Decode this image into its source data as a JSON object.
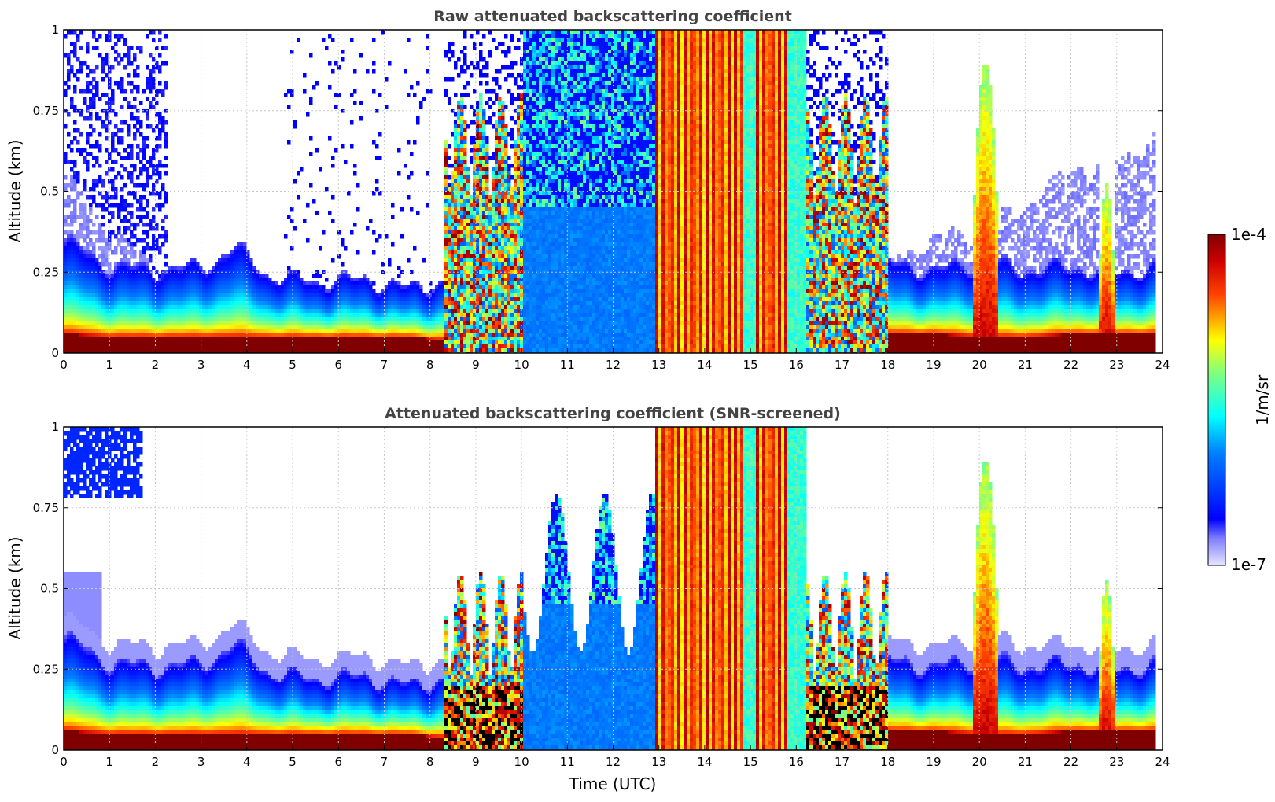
{
  "chart_data": [
    {
      "type": "heatmap",
      "title": "Raw attenuated backscattering coefficient",
      "xlabel": "",
      "ylabel": "Altitude (km)",
      "xlim": [
        0,
        24
      ],
      "ylim": [
        0,
        1
      ],
      "x_ticks": [
        "0",
        "1",
        "2",
        "3",
        "4",
        "5",
        "6",
        "7",
        "8",
        "9",
        "10",
        "11",
        "12",
        "13",
        "14",
        "15",
        "16",
        "17",
        "18",
        "19",
        "20",
        "21",
        "22",
        "23",
        "24"
      ],
      "y_ticks": [
        "0",
        "0.25",
        "0.5",
        "0.75",
        "1"
      ],
      "y_tick_values": [
        0,
        0.25,
        0.5,
        0.75,
        1
      ],
      "grid": true,
      "data_end_hour": 23.8,
      "profile": [
        {
          "t": 0.0,
          "top": 0.35,
          "fog": 0.2,
          "base": 0.06
        },
        {
          "t": 1.0,
          "top": 0.27,
          "fog": 0.1,
          "base": 0.05
        },
        {
          "t": 2.0,
          "top": 0.26,
          "fog": 0.0,
          "base": 0.05
        },
        {
          "t": 3.0,
          "top": 0.27,
          "fog": 0.0,
          "base": 0.05
        },
        {
          "t": 3.7,
          "top": 0.33,
          "fog": 0.0,
          "base": 0.05
        },
        {
          "t": 4.5,
          "top": 0.24,
          "fog": 0.0,
          "base": 0.05
        },
        {
          "t": 5.5,
          "top": 0.22,
          "fog": 0.0,
          "base": 0.05
        },
        {
          "t": 6.5,
          "top": 0.23,
          "fog": 0.0,
          "base": 0.05
        },
        {
          "t": 7.5,
          "top": 0.2,
          "fog": 0.0,
          "base": 0.05
        },
        {
          "t": 8.2,
          "top": 0.22,
          "fog": 0.0,
          "base": 0.04
        },
        {
          "t": 18.0,
          "top": 0.28,
          "fog": 0.0,
          "base": 0.06
        },
        {
          "t": 19.0,
          "top": 0.26,
          "fog": 0.1,
          "base": 0.06
        },
        {
          "t": 20.0,
          "top": 0.28,
          "fog": 0.1,
          "base": 0.05
        },
        {
          "t": 21.0,
          "top": 0.26,
          "fog": 0.2,
          "base": 0.05
        },
        {
          "t": 22.0,
          "top": 0.27,
          "fog": 0.3,
          "base": 0.06
        },
        {
          "t": 23.0,
          "top": 0.25,
          "fog": 0.35,
          "base": 0.06
        },
        {
          "t": 23.8,
          "top": 0.27,
          "fog": 0.4,
          "base": 0.06
        }
      ],
      "cloud_events": [
        {
          "start": 8.3,
          "end": 10.0,
          "top": 0.6,
          "kind": "mixed"
        },
        {
          "start": 10.0,
          "end": 11.0,
          "top": 1.0,
          "kind": "blue"
        },
        {
          "start": 11.0,
          "end": 12.9,
          "top": 1.0,
          "kind": "blue"
        },
        {
          "start": 12.9,
          "end": 14.8,
          "top": 1.0,
          "kind": "dense"
        },
        {
          "start": 14.8,
          "end": 15.1,
          "top": 1.0,
          "kind": "cyan"
        },
        {
          "start": 15.1,
          "end": 15.8,
          "top": 1.0,
          "kind": "dense"
        },
        {
          "start": 15.8,
          "end": 16.2,
          "top": 1.0,
          "kind": "cyan"
        },
        {
          "start": 16.2,
          "end": 18.0,
          "top": 0.95,
          "kind": "mixed"
        },
        {
          "start": 19.8,
          "end": 20.4,
          "top": 0.9,
          "kind": "spike"
        },
        {
          "start": 22.6,
          "end": 22.9,
          "top": 0.53,
          "kind": "spike"
        }
      ]
    },
    {
      "type": "heatmap",
      "title": "Attenuated backscattering coefficient (SNR-screened)",
      "xlabel": "Time (UTC)",
      "ylabel": "Altitude (km)",
      "xlim": [
        0,
        24
      ],
      "ylim": [
        0,
        1
      ],
      "x_ticks": [
        "0",
        "1",
        "2",
        "3",
        "4",
        "5",
        "6",
        "7",
        "8",
        "9",
        "10",
        "11",
        "12",
        "13",
        "14",
        "15",
        "16",
        "17",
        "18",
        "19",
        "20",
        "21",
        "22",
        "23",
        "24"
      ],
      "y_ticks": [
        "0",
        "0.25",
        "0.5",
        "0.75",
        "1"
      ],
      "y_tick_values": [
        0,
        0.25,
        0.5,
        0.75,
        1
      ],
      "grid": true,
      "screened": true
    }
  ],
  "colorbar": {
    "min_label": "1e-7",
    "max_label": "1e-4",
    "min": 1e-07,
    "max": 0.0001,
    "scale": "log",
    "units": "1/m/sr",
    "colormap": "jet"
  },
  "colors": {
    "grid": "#c8c8c8",
    "title": "#444444",
    "low_end": "#e6e6ff",
    "high_end": "#800000",
    "screened_mask": "#000000"
  }
}
